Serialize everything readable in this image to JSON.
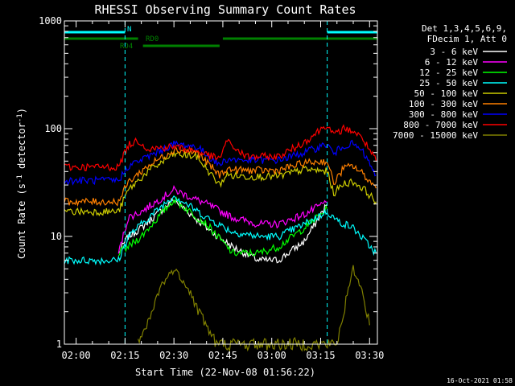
{
  "chart_data": {
    "type": "line",
    "title": "RHESSI Observing Summary Count Rates",
    "xlabel": "Start Time (22-Nov-08 01:56:22)",
    "ylabel_pre": "Count Rate (s",
    "ylabel_sup1": "-1",
    "ylabel_mid": " detector",
    "ylabel_sup2": "-1",
    "ylabel_post": ")",
    "footer": "16-Oct-2021 01:58",
    "x_unit": "minutes",
    "xlim": [
      116.4,
      212.4
    ],
    "ylim": [
      1,
      1000
    ],
    "y_scale": "log",
    "x_ticks": [
      {
        "v": 120,
        "label": "02:00"
      },
      {
        "v": 135,
        "label": "02:15"
      },
      {
        "v": 150,
        "label": "02:30"
      },
      {
        "v": 165,
        "label": "02:45"
      },
      {
        "v": 180,
        "label": "03:00"
      },
      {
        "v": 195,
        "label": "03:15"
      },
      {
        "v": 210,
        "label": "03:30"
      }
    ],
    "y_ticks": [
      {
        "v": 1,
        "label": "1"
      },
      {
        "v": 10,
        "label": "10"
      },
      {
        "v": 100,
        "label": "100"
      },
      {
        "v": 1000,
        "label": "1000"
      }
    ],
    "legend_header": [
      "Det 1,3,4,5,6,9,",
      "FDecim 1, Att 0"
    ],
    "legend_position": "right",
    "flags": [
      {
        "label": "N",
        "color": "#00ffff",
        "segments": [
          [
            116.4,
            135
          ],
          [
            197,
            212.4
          ]
        ]
      },
      {
        "label": "RD0",
        "color": "#008000",
        "segments": [
          [
            116.4,
            139
          ],
          [
            165,
            212.4
          ]
        ]
      },
      {
        "label": "RD4",
        "color": "#008000",
        "segments": [
          [
            140.5,
            164
          ]
        ]
      }
    ],
    "night_boundaries": [
      135,
      197
    ],
    "series": [
      {
        "name": "3 - 6 keV",
        "color": "#ffffff",
        "points": [
          [
            133,
            7
          ],
          [
            136,
            10
          ],
          [
            140,
            12
          ],
          [
            150,
            22
          ],
          [
            160,
            12
          ],
          [
            168,
            8
          ],
          [
            176,
            6
          ],
          [
            182,
            6
          ],
          [
            190,
            9
          ],
          [
            197,
            20
          ]
        ]
      },
      {
        "name": "6 - 12 keV",
        "color": "#ff00ff",
        "points": [
          [
            133,
            7
          ],
          [
            136,
            15
          ],
          [
            140,
            17
          ],
          [
            150,
            27
          ],
          [
            160,
            20
          ],
          [
            168,
            15
          ],
          [
            176,
            13
          ],
          [
            182,
            13
          ],
          [
            190,
            16
          ],
          [
            197,
            21
          ]
        ]
      },
      {
        "name": "12 - 25 keV",
        "color": "#00ff00",
        "points": [
          [
            133,
            7
          ],
          [
            136,
            8
          ],
          [
            140,
            10
          ],
          [
            150,
            22
          ],
          [
            160,
            13
          ],
          [
            168,
            7
          ],
          [
            176,
            7
          ],
          [
            182,
            8
          ],
          [
            190,
            12
          ],
          [
            197,
            18
          ]
        ]
      },
      {
        "name": "25 - 50 keV",
        "color": "#00ffff",
        "points": [
          [
            116.4,
            6
          ],
          [
            133,
            6
          ],
          [
            136,
            10
          ],
          [
            140,
            13
          ],
          [
            150,
            24
          ],
          [
            160,
            15
          ],
          [
            168,
            11
          ],
          [
            176,
            10
          ],
          [
            182,
            10
          ],
          [
            190,
            13
          ],
          [
            197,
            17
          ],
          [
            200,
            14
          ],
          [
            205,
            12
          ],
          [
            212,
            7
          ]
        ]
      },
      {
        "name": "50 - 100 keV",
        "color": "#cccc00",
        "points": [
          [
            116.4,
            17
          ],
          [
            133,
            17
          ],
          [
            136,
            27
          ],
          [
            142,
            40
          ],
          [
            150,
            58
          ],
          [
            157,
            55
          ],
          [
            164,
            30
          ],
          [
            166,
            37
          ],
          [
            172,
            36
          ],
          [
            182,
            36
          ],
          [
            190,
            42
          ],
          [
            197,
            40
          ],
          [
            199,
            25
          ],
          [
            202,
            31
          ],
          [
            205,
            32
          ],
          [
            208,
            28
          ],
          [
            212,
            21
          ]
        ]
      },
      {
        "name": "100 - 300 keV",
        "color": "#ff8000",
        "points": [
          [
            116.4,
            21
          ],
          [
            133,
            21
          ],
          [
            136,
            32
          ],
          [
            142,
            45
          ],
          [
            150,
            64
          ],
          [
            157,
            60
          ],
          [
            164,
            37
          ],
          [
            166,
            42
          ],
          [
            172,
            41
          ],
          [
            182,
            41
          ],
          [
            190,
            48
          ],
          [
            197,
            50
          ],
          [
            199,
            31
          ],
          [
            202,
            43
          ],
          [
            205,
            45
          ],
          [
            208,
            38
          ],
          [
            212,
            28
          ]
        ]
      },
      {
        "name": "300 - 800 keV",
        "color": "#0000ff",
        "points": [
          [
            116.4,
            33
          ],
          [
            133,
            33
          ],
          [
            136,
            45
          ],
          [
            142,
            55
          ],
          [
            150,
            72
          ],
          [
            157,
            68
          ],
          [
            164,
            46
          ],
          [
            166,
            52
          ],
          [
            172,
            51
          ],
          [
            182,
            51
          ],
          [
            190,
            60
          ],
          [
            197,
            72
          ],
          [
            199,
            58
          ],
          [
            202,
            70
          ],
          [
            205,
            72
          ],
          [
            208,
            60
          ],
          [
            212,
            37
          ]
        ]
      },
      {
        "name": "800 - 7000 keV",
        "color": "#ff0000",
        "points": [
          [
            116.4,
            44
          ],
          [
            133,
            44
          ],
          [
            136,
            70
          ],
          [
            139,
            78
          ],
          [
            142,
            65
          ],
          [
            150,
            68
          ],
          [
            157,
            62
          ],
          [
            164,
            52
          ],
          [
            166,
            77
          ],
          [
            172,
            55
          ],
          [
            182,
            55
          ],
          [
            190,
            75
          ],
          [
            197,
            110
          ],
          [
            199,
            86
          ],
          [
            202,
            100
          ],
          [
            205,
            95
          ],
          [
            208,
            80
          ],
          [
            212,
            50
          ]
        ]
      },
      {
        "name": "7000 - 15000 keV",
        "color": "#808000",
        "points": [
          [
            139,
            1
          ],
          [
            142,
            1.5
          ],
          [
            146,
            3.5
          ],
          [
            150,
            5
          ],
          [
            154,
            3.5
          ],
          [
            157,
            2.2
          ],
          [
            160,
            1.5
          ],
          [
            163,
            1
          ],
          [
            200,
            1
          ],
          [
            202,
            2
          ],
          [
            205,
            5
          ],
          [
            208,
            3
          ],
          [
            210,
            1.5
          ]
        ]
      }
    ]
  }
}
